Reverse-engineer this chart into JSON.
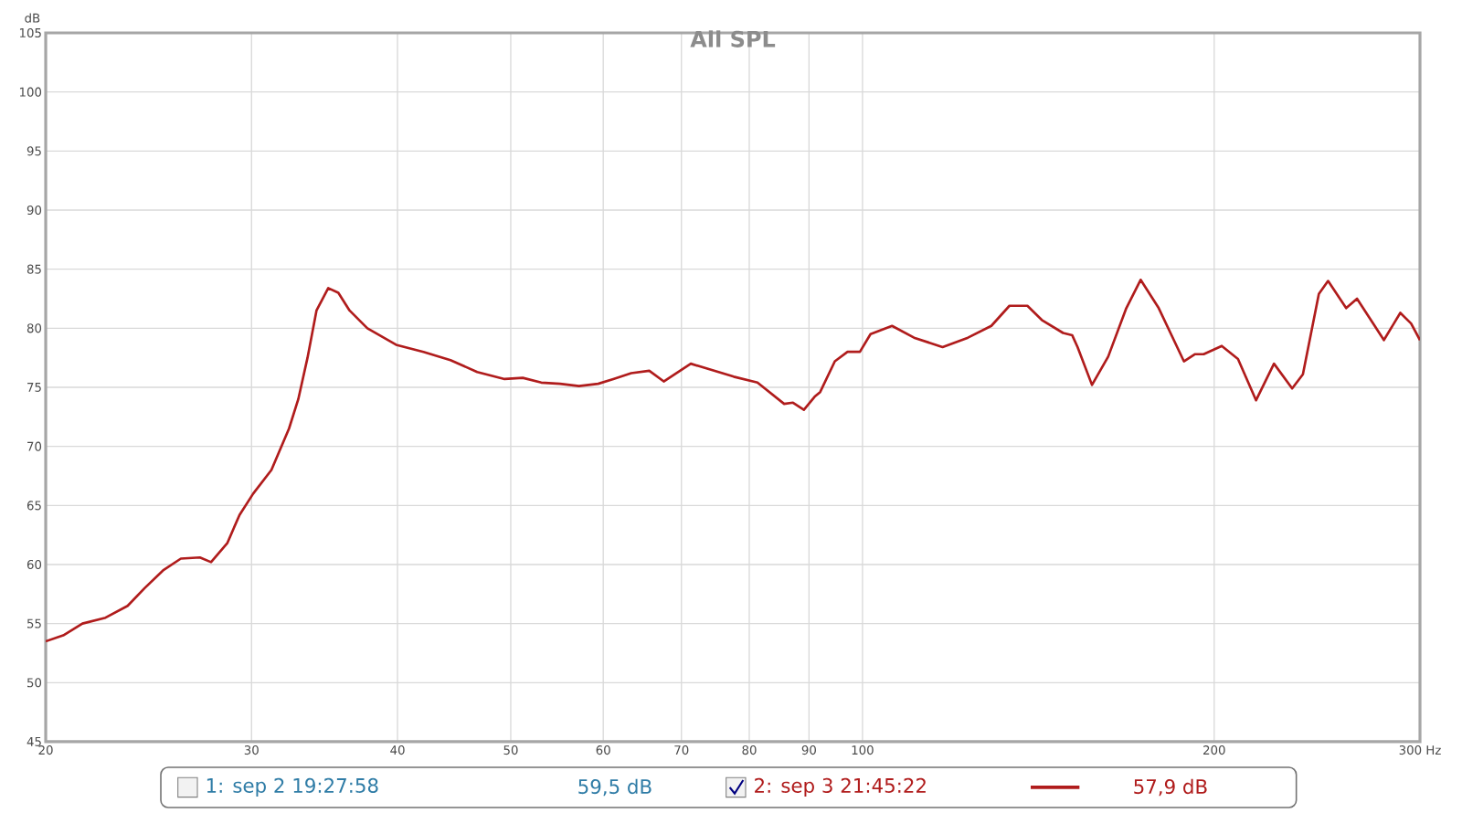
{
  "chart_data": {
    "type": "line",
    "title": "All SPL",
    "ylabel": "dB",
    "x": [
      20,
      20.7,
      21.5,
      22.5,
      23.5,
      24.3,
      25.2,
      26.1,
      27.1,
      27.7,
      28.6,
      29.3,
      30.1,
      31.2,
      32.3,
      32.9,
      33.5,
      34.1,
      34.9,
      35.6,
      36.4,
      37.7,
      39.9,
      42.1,
      44.4,
      46.8,
      49.4,
      51.2,
      53.1,
      55.1,
      57.2,
      59.4,
      61.2,
      63.4,
      65.7,
      67.6,
      71.3,
      77.6,
      81.3,
      85.7,
      87.2,
      89.1,
      91.0,
      92.0,
      94.7,
      97.1,
      99.5,
      101.6,
      106,
      110.7,
      117.1,
      123.1,
      128.9,
      133.6,
      138.4,
      142.4,
      148.5,
      151.2,
      152.8,
      157.2,
      162.3,
      168.2,
      173.0,
      179.3,
      188.4,
      192.5,
      195.9,
      203,
      209.6,
      217.2,
      225,
      233.2,
      238.2,
      245.8,
      250.3,
      259.4,
      265,
      273.6,
      279.4,
      288.6,
      294.8,
      300
    ],
    "series": [
      {
        "name": "2: sep 3 21:45:22",
        "color": "#b01c1c",
        "values": [
          53.5,
          54,
          55,
          55.5,
          56.5,
          58,
          59.5,
          60.5,
          60.6,
          60.2,
          61.8,
          64.2,
          66,
          68,
          71.5,
          74,
          77.5,
          81.5,
          83.4,
          83,
          81.5,
          80,
          78.6,
          78,
          77.3,
          76.3,
          75.7,
          75.8,
          75.4,
          75.3,
          75.1,
          75.3,
          75.7,
          76.2,
          76.4,
          75.5,
          77.0,
          75.9,
          75.4,
          73.6,
          73.7,
          73.1,
          74.2,
          74.6,
          77.2,
          78,
          78,
          79.5,
          80.2,
          79.2,
          78.4,
          79.2,
          80.2,
          81.9,
          81.9,
          80.7,
          79.6,
          79.4,
          78.4,
          75.2,
          77.6,
          81.7,
          84.1,
          81.7,
          77.2,
          77.8,
          77.8,
          78.5,
          77.4,
          73.9,
          77,
          74.9,
          76.1,
          82.9,
          84,
          81.7,
          82.5,
          80.4,
          79,
          81.3,
          80.4,
          79
        ]
      }
    ],
    "log": "x",
    "xlim": [
      20,
      300
    ],
    "ylim": [
      45,
      105
    ],
    "xticks": [
      20,
      30,
      40,
      50,
      60,
      70,
      80,
      90,
      100,
      200,
      {
        "value": 300,
        "label": "300 Hz"
      }
    ],
    "yticks": [
      45,
      50,
      55,
      60,
      65,
      70,
      75,
      80,
      85,
      90,
      95,
      100,
      105
    ],
    "grid": true,
    "legend": "bottom",
    "annotations": [
      "1: sep 2 19:27:58",
      "59,5 dB",
      "57,9 dB"
    ]
  }
}
